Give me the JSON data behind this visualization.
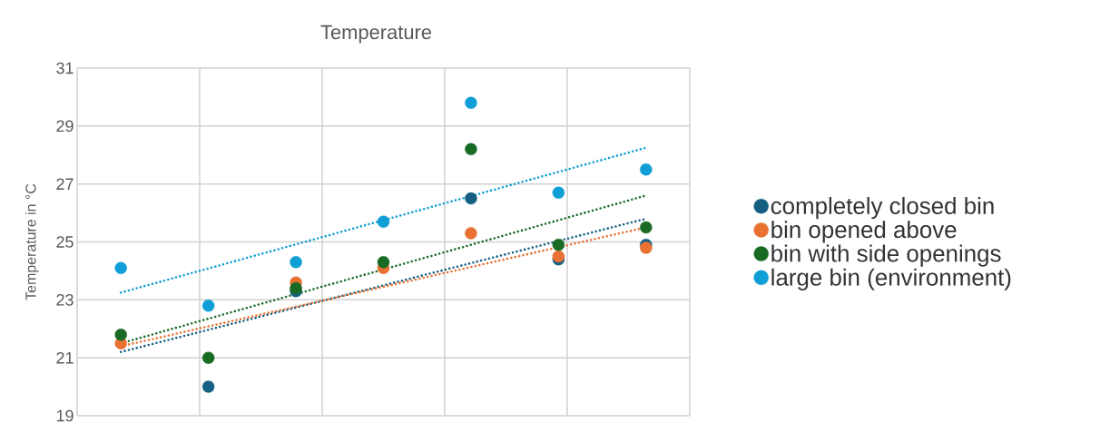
{
  "chart_data": {
    "type": "scatter",
    "title": "Temperature",
    "ylabel": "Temperature in °C",
    "categories": [
      null,
      null,
      null,
      null,
      null,
      null,
      null
    ],
    "ylim": [
      19,
      31
    ],
    "yticks": [
      19,
      21,
      23,
      25,
      27,
      29,
      31
    ],
    "grid": true,
    "legend": "right",
    "marker": "circle",
    "tick_labels": "y",
    "series": [
      {
        "name": "completely closed bin",
        "color": "#156082",
        "values": [
          null,
          20.0,
          23.3,
          null,
          26.5,
          24.4,
          24.9
        ]
      },
      {
        "name": "bin opened above",
        "color": "#e97132",
        "values": [
          21.5,
          null,
          23.6,
          24.1,
          25.3,
          24.5,
          24.8
        ]
      },
      {
        "name": "bin with side openings",
        "color": "#196b24",
        "values": [
          21.8,
          21.0,
          23.4,
          24.3,
          28.2,
          24.9,
          25.5
        ]
      },
      {
        "name": "large bin (environment)",
        "color": "#0f9ed5",
        "values": [
          24.1,
          22.8,
          24.3,
          25.7,
          29.8,
          26.7,
          27.5
        ]
      },
      {
        "type": "line",
        "line_style": "dotted",
        "marker": "none",
        "color": "#156082",
        "values": [
          21.2,
          null,
          null,
          null,
          null,
          null,
          25.8
        ]
      },
      {
        "type": "line",
        "line_style": "dotted",
        "marker": "none",
        "color": "#e97132",
        "values": [
          21.4,
          null,
          null,
          null,
          null,
          null,
          25.5
        ]
      },
      {
        "type": "line",
        "line_style": "dotted",
        "marker": "none",
        "color": "#196b24",
        "values": [
          21.5,
          null,
          null,
          null,
          null,
          null,
          26.6
        ]
      },
      {
        "type": "line",
        "line_style": "dotted",
        "marker": "none",
        "color": "#0f9ed5",
        "values": [
          23.25,
          null,
          null,
          null,
          null,
          null,
          28.25
        ]
      }
    ]
  }
}
